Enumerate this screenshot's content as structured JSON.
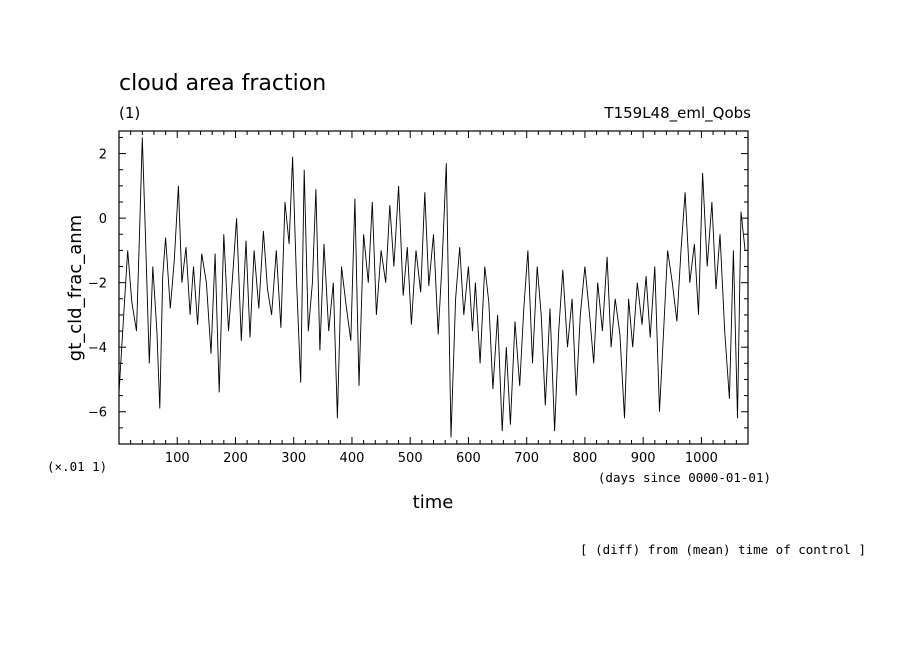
{
  "chart_data": {
    "type": "line",
    "title": "cloud area fraction",
    "units": "(1)",
    "experiment": "T159L48_eml_Qobs",
    "xlabel": "time",
    "xunits": "(days since 0000-01-01)",
    "ylabel": "gt_cld_frac_anm",
    "yscale_note": "(×.01 1)",
    "footnote": "[ (diff) from (mean) time of control ]",
    "xlim": [
      0,
      1080
    ],
    "ylim": [
      -7,
      2.7
    ],
    "xticks": [
      100,
      200,
      300,
      400,
      500,
      600,
      700,
      800,
      900,
      1000
    ],
    "yticks": [
      -6,
      -4,
      -2,
      0,
      2
    ],
    "line_color": "#000000",
    "series": [
      {
        "x": [
          0,
          8,
          15,
          22,
          30,
          35,
          40,
          45,
          52,
          58,
          65,
          70,
          75,
          80,
          88,
          95,
          102,
          108,
          115,
          122,
          128,
          135,
          142,
          150,
          158,
          165,
          172,
          180,
          188,
          195,
          202,
          210,
          218,
          225,
          232,
          240,
          248,
          255,
          262,
          270,
          278,
          285,
          292,
          298,
          305,
          312,
          318,
          325,
          332,
          338,
          345,
          352,
          360,
          368,
          375,
          382,
          390,
          398,
          405,
          412,
          420,
          428,
          435,
          442,
          450,
          458,
          465,
          472,
          480,
          488,
          495,
          502,
          510,
          518,
          525,
          532,
          540,
          548,
          555,
          562,
          570,
          578,
          585,
          592,
          600,
          607,
          612,
          620,
          628,
          635,
          642,
          650,
          658,
          665,
          672,
          680,
          688,
          695,
          702,
          710,
          718,
          725,
          732,
          740,
          748,
          755,
          762,
          770,
          778,
          785,
          792,
          800,
          808,
          815,
          822,
          830,
          838,
          845,
          852,
          860,
          868,
          875,
          882,
          890,
          898,
          905,
          912,
          920,
          928,
          935,
          942,
          950,
          958,
          965,
          972,
          980,
          988,
          995,
          1002,
          1010,
          1018,
          1025,
          1032,
          1040,
          1048,
          1055,
          1062,
          1068,
          1075
        ],
        "y": [
          -5.4,
          -3.0,
          -1.0,
          -2.6,
          -3.5,
          -0.6,
          2.5,
          -0.3,
          -4.5,
          -1.5,
          -3.5,
          -5.9,
          -1.8,
          -0.6,
          -2.8,
          -1.3,
          1.0,
          -2.0,
          -0.9,
          -3.0,
          -1.5,
          -3.3,
          -1.1,
          -2.0,
          -4.2,
          -1.1,
          -5.4,
          -0.5,
          -3.5,
          -1.8,
          0.0,
          -3.8,
          -0.7,
          -3.7,
          -1.0,
          -2.8,
          -0.4,
          -2.2,
          -3.0,
          -1.0,
          -3.4,
          0.5,
          -0.8,
          1.9,
          -2.0,
          -5.1,
          1.5,
          -3.5,
          -2.0,
          0.9,
          -4.1,
          -0.8,
          -3.5,
          -2.0,
          -6.2,
          -1.5,
          -2.7,
          -3.8,
          0.6,
          -5.2,
          -0.5,
          -2.0,
          0.5,
          -3.0,
          -1.0,
          -2.0,
          0.4,
          -1.5,
          1.0,
          -2.4,
          -0.9,
          -3.3,
          -1.0,
          -2.3,
          0.8,
          -2.1,
          -0.5,
          -3.6,
          -1.3,
          1.7,
          -6.8,
          -2.5,
          -0.9,
          -3.0,
          -1.5,
          -3.5,
          -2.0,
          -4.5,
          -1.5,
          -2.6,
          -5.3,
          -3.0,
          -6.6,
          -4.0,
          -6.4,
          -3.2,
          -5.2,
          -2.8,
          -1.0,
          -4.5,
          -1.5,
          -3.0,
          -5.8,
          -2.8,
          -6.6,
          -3.5,
          -1.6,
          -4.0,
          -2.5,
          -5.5,
          -3.0,
          -1.5,
          -3.0,
          -4.5,
          -2.0,
          -3.5,
          -1.2,
          -4.0,
          -2.5,
          -3.6,
          -6.2,
          -2.5,
          -4.0,
          -2.0,
          -3.3,
          -1.8,
          -3.7,
          -1.5,
          -6.0,
          -3.5,
          -1.0,
          -2.0,
          -3.2,
          -1.0,
          0.8,
          -2.0,
          -0.8,
          -3.0,
          1.4,
          -1.5,
          0.5,
          -2.2,
          -0.5,
          -3.5,
          -5.6,
          -1.0,
          -6.2,
          0.2,
          -1.0
        ]
      }
    ]
  }
}
